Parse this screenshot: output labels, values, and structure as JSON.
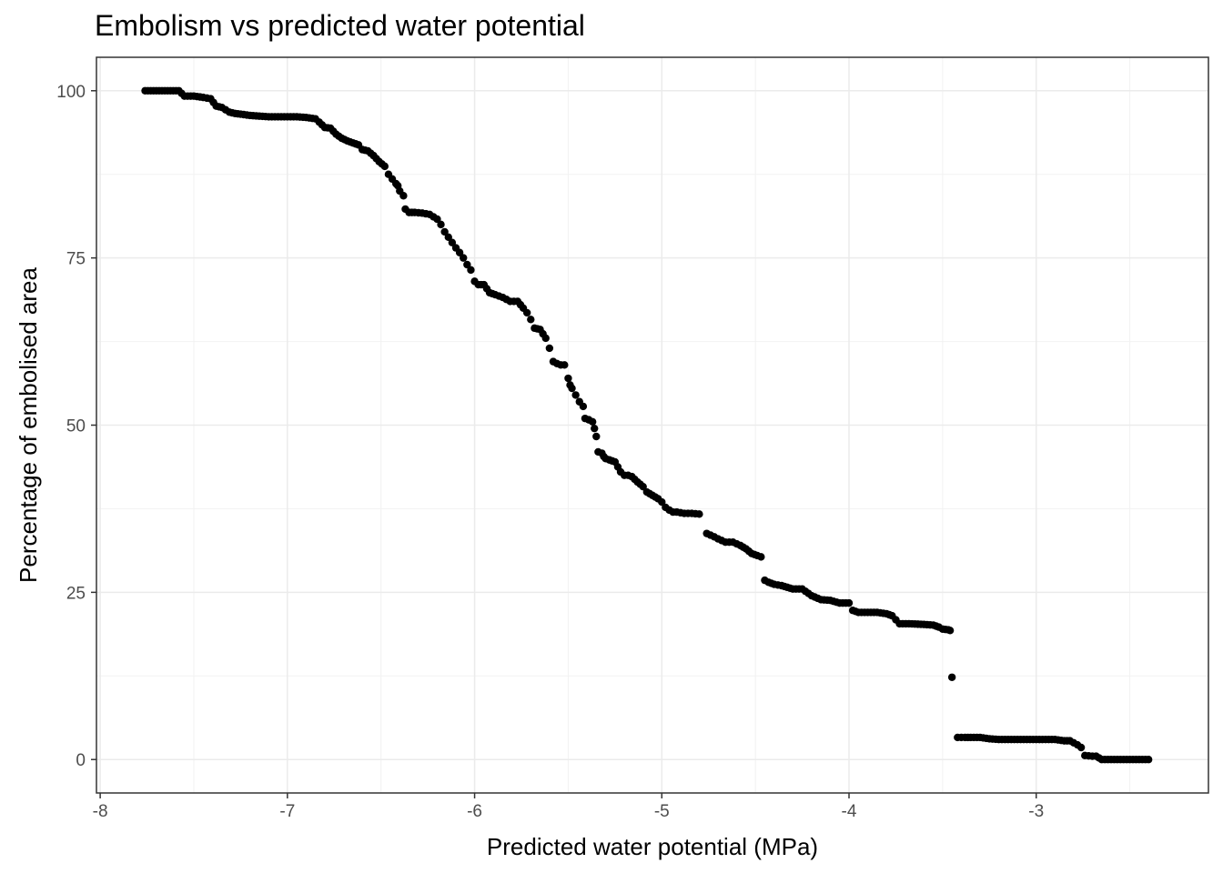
{
  "chart_data": {
    "type": "scatter",
    "title": "Embolism vs predicted water potential",
    "xlabel": "Predicted water potential (MPa)",
    "ylabel": "Percentage of embolised area",
    "xlim": [
      -8.02,
      -2.08
    ],
    "ylim": [
      -5,
      105
    ],
    "x_ticks": [
      -8,
      -7,
      -6,
      -5,
      -4,
      -3
    ],
    "x_tick_labels": [
      "-8",
      "-7",
      "-6",
      "-5",
      "-4",
      "-3"
    ],
    "y_ticks": [
      0,
      25,
      50,
      75,
      100
    ],
    "y_tick_labels": [
      "0",
      "25",
      "50",
      "75",
      "100"
    ],
    "grid": true,
    "legend": "none",
    "point_color": "#000000",
    "x": [
      -7.76,
      -7.7,
      -7.64,
      -7.58,
      -7.55,
      -7.5,
      -7.45,
      -7.41,
      -7.38,
      -7.35,
      -7.31,
      -7.28,
      -7.25,
      -7.2,
      -7.15,
      -7.1,
      -7.05,
      -7.0,
      -6.95,
      -6.9,
      -6.85,
      -6.83,
      -6.8,
      -6.77,
      -6.74,
      -6.71,
      -6.68,
      -6.65,
      -6.62,
      -6.6,
      -6.57,
      -6.54,
      -6.51,
      -6.48,
      -6.46,
      -6.44,
      -6.42,
      -6.41,
      -6.4,
      -6.38,
      -6.37,
      -6.35,
      -6.32,
      -6.28,
      -6.24,
      -6.2,
      -6.18,
      -6.16,
      -6.14,
      -6.12,
      -6.1,
      -6.08,
      -6.06,
      -6.04,
      -6.02,
      -6.0,
      -5.98,
      -5.95,
      -5.92,
      -5.89,
      -5.85,
      -5.81,
      -5.77,
      -5.74,
      -5.72,
      -5.7,
      -5.68,
      -5.65,
      -5.62,
      -5.6,
      -5.58,
      -5.56,
      -5.54,
      -5.52,
      -5.5,
      -5.49,
      -5.48,
      -5.46,
      -5.44,
      -5.42,
      -5.41,
      -5.39,
      -5.37,
      -5.36,
      -5.35,
      -5.34,
      -5.32,
      -5.31,
      -5.3,
      -5.28,
      -5.25,
      -5.22,
      -5.2,
      -5.18,
      -5.16,
      -5.13,
      -5.1,
      -5.08,
      -5.05,
      -5.02,
      -5.0,
      -4.98,
      -4.96,
      -4.94,
      -4.92,
      -4.88,
      -4.84,
      -4.8,
      -4.76,
      -4.72,
      -4.7,
      -4.66,
      -4.62,
      -4.58,
      -4.55,
      -4.52,
      -4.49,
      -4.47,
      -4.45,
      -4.43,
      -4.4,
      -4.36,
      -4.3,
      -4.25,
      -4.2,
      -4.15,
      -4.1,
      -4.05,
      -4.0,
      -3.98,
      -3.95,
      -3.9,
      -3.85,
      -3.8,
      -3.77,
      -3.73,
      -3.68,
      -3.6,
      -3.55,
      -3.52,
      -3.5,
      -3.47,
      -3.46,
      -3.45,
      -3.42,
      -3.38,
      -3.35,
      -3.3,
      -3.25,
      -3.2,
      -3.1,
      -3.0,
      -2.95,
      -2.9,
      -2.85,
      -2.82,
      -2.8,
      -2.78,
      -2.76,
      -2.74,
      -2.7,
      -2.68,
      -2.65,
      -2.6,
      -2.55,
      -2.5,
      -2.45,
      -2.4
    ],
    "y": [
      100,
      100,
      100,
      100,
      99.2,
      99.2,
      99,
      98.8,
      97.7,
      97.5,
      96.8,
      96.6,
      96.5,
      96.3,
      96.2,
      96.1,
      96.1,
      96.1,
      96.1,
      96,
      95.8,
      95.3,
      94.5,
      94.4,
      93.5,
      92.9,
      92.5,
      92.2,
      91.9,
      91.2,
      91,
      90.3,
      89.4,
      88.7,
      87.5,
      86.8,
      86.1,
      85.8,
      85,
      84.3,
      82.3,
      81.8,
      81.8,
      81.7,
      81.5,
      80.8,
      80,
      78.9,
      78.1,
      77.3,
      76.5,
      75.8,
      75,
      74,
      73.2,
      71.5,
      71,
      71,
      69.8,
      69.5,
      69.1,
      68.5,
      68.5,
      67.5,
      66.8,
      65.8,
      64.5,
      64.3,
      63,
      61.5,
      59.5,
      59.2,
      59,
      59,
      57,
      56,
      55.5,
      54.5,
      53.5,
      52.8,
      51,
      50.8,
      50.5,
      49.5,
      48.3,
      46,
      45.8,
      45.3,
      45,
      44.8,
      44.5,
      43,
      42.5,
      42.5,
      42.3,
      41.5,
      40.8,
      40,
      39.5,
      39,
      38.5,
      37.7,
      37.3,
      37,
      37,
      36.8,
      36.8,
      36.7,
      33.8,
      33.3,
      33,
      32.5,
      32.5,
      32,
      31.5,
      30.8,
      30.5,
      30.3,
      26.8,
      26.5,
      26.2,
      26,
      25.5,
      25.5,
      24.5,
      23.9,
      23.8,
      23.4,
      23.4,
      22.3,
      22,
      22,
      22,
      21.8,
      21.5,
      20.3,
      20.3,
      20.2,
      20.1,
      19.8,
      19.5,
      19.4,
      19.3,
      12.3,
      3.3,
      3.3,
      3.3,
      3.3,
      3.1,
      3,
      3,
      3,
      3,
      3,
      2.8,
      2.8,
      2.5,
      2.2,
      1.8,
      0.6,
      0.5,
      0.5,
      0,
      0,
      0,
      0,
      0,
      0
    ]
  }
}
